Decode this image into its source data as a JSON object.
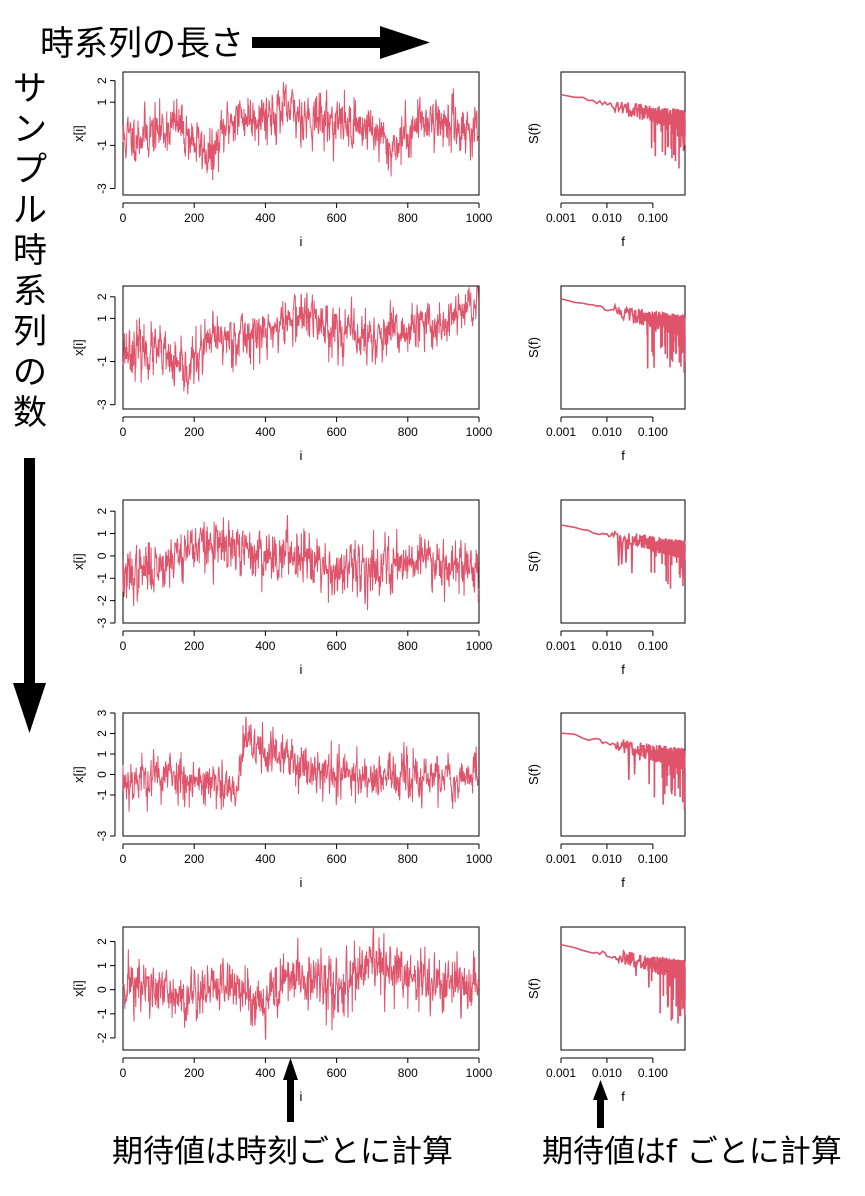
{
  "annotations": {
    "top": "時系列の長さ",
    "left": "サンプル時系列の数",
    "bottom_left": "期待値は時刻ごとに計算",
    "bottom_right": "期待値はf ごとに計算"
  },
  "colors": {
    "series": "#df536b",
    "axis": "#000000",
    "arrow": "#000000"
  },
  "chart_data": [
    {
      "type": "line",
      "panel": "time-series-1",
      "xlabel": "i",
      "ylabel": "x[i]",
      "xlim": [
        0,
        1000
      ],
      "ylim": [
        -3.3,
        2.4
      ],
      "xticks": [
        0,
        200,
        400,
        600,
        800,
        1000
      ],
      "yticks": [
        -3,
        -1,
        1,
        2
      ],
      "series": [
        {
          "n": 1000,
          "seed": 11,
          "level": [
            [
              0,
              -0.7
            ],
            [
              100,
              -0.3
            ],
            [
              150,
              0.0
            ],
            [
              200,
              -0.8
            ],
            [
              250,
              -1.6
            ],
            [
              300,
              0.2
            ],
            [
              450,
              0.6
            ],
            [
              560,
              0.2
            ],
            [
              700,
              -0.2
            ],
            [
              750,
              -1.2
            ],
            [
              850,
              0.3
            ],
            [
              1000,
              -0.4
            ]
          ]
        }
      ]
    },
    {
      "type": "line",
      "panel": "time-series-2",
      "xlabel": "i",
      "ylabel": "x[i]",
      "xlim": [
        0,
        1000
      ],
      "ylim": [
        -3.2,
        2.5
      ],
      "xticks": [
        0,
        200,
        400,
        600,
        800,
        1000
      ],
      "yticks": [
        -3,
        -1,
        1,
        2
      ],
      "series": [
        {
          "n": 1000,
          "seed": 23,
          "level": [
            [
              0,
              -0.4
            ],
            [
              100,
              -0.6
            ],
            [
              170,
              -1.6
            ],
            [
              250,
              0.0
            ],
            [
              400,
              0.3
            ],
            [
              500,
              1.2
            ],
            [
              600,
              0.5
            ],
            [
              700,
              0.0
            ],
            [
              800,
              0.4
            ],
            [
              900,
              0.8
            ],
            [
              1000,
              1.7
            ]
          ]
        }
      ]
    },
    {
      "type": "line",
      "panel": "time-series-3",
      "xlabel": "i",
      "ylabel": "x[i]",
      "xlim": [
        0,
        1000
      ],
      "ylim": [
        -3.0,
        2.5
      ],
      "xticks": [
        0,
        200,
        400,
        600,
        800,
        1000
      ],
      "yticks": [
        -3,
        -2,
        -1,
        0,
        1,
        2
      ],
      "series": [
        {
          "n": 1000,
          "seed": 37,
          "level": [
            [
              0,
              -1.0
            ],
            [
              100,
              -0.4
            ],
            [
              200,
              0.5
            ],
            [
              300,
              0.3
            ],
            [
              400,
              0.0
            ],
            [
              520,
              0.2
            ],
            [
              600,
              -0.8
            ],
            [
              700,
              -0.5
            ],
            [
              850,
              0.0
            ],
            [
              1000,
              -0.7
            ]
          ]
        }
      ]
    },
    {
      "type": "line",
      "panel": "time-series-4",
      "xlabel": "i",
      "ylabel": "x[i]",
      "xlim": [
        0,
        1000
      ],
      "ylim": [
        -3.0,
        3.0
      ],
      "xticks": [
        0,
        200,
        400,
        600,
        800,
        1000
      ],
      "yticks": [
        -3,
        -1,
        0,
        1,
        2,
        3
      ],
      "series": [
        {
          "n": 1000,
          "seed": 53,
          "level": [
            [
              0,
              -0.3
            ],
            [
              150,
              0.0
            ],
            [
              250,
              -0.5
            ],
            [
              320,
              -1.0
            ],
            [
              340,
              1.6
            ],
            [
              450,
              0.8
            ],
            [
              600,
              0.0
            ],
            [
              800,
              -0.2
            ],
            [
              1000,
              -0.1
            ]
          ]
        }
      ]
    },
    {
      "type": "line",
      "panel": "time-series-5",
      "xlabel": "i",
      "ylabel": "x[i]",
      "xlim": [
        0,
        1000
      ],
      "ylim": [
        -2.5,
        2.6
      ],
      "xticks": [
        0,
        200,
        400,
        600,
        800,
        1000
      ],
      "yticks": [
        -2,
        -1,
        0,
        1,
        2
      ],
      "series": [
        {
          "n": 1000,
          "seed": 71,
          "level": [
            [
              0,
              0.4
            ],
            [
              150,
              -0.4
            ],
            [
              300,
              0.3
            ],
            [
              380,
              -0.5
            ],
            [
              480,
              0.6
            ],
            [
              600,
              0.0
            ],
            [
              700,
              1.0
            ],
            [
              850,
              0.3
            ],
            [
              1000,
              0.0
            ]
          ]
        }
      ]
    },
    {
      "type": "line",
      "panel": "spectrum-1",
      "xlabel": "f",
      "ylabel": "S(f)",
      "xscale": "log",
      "xlim": [
        0.001,
        0.5
      ],
      "xticks": [
        0.001,
        0.01,
        0.1
      ],
      "xticklabels": [
        "0.001",
        "0.010",
        "0.100"
      ],
      "series": [
        {
          "seed": 101,
          "start": 0.82,
          "slope": 0.22,
          "noise": 0.09,
          "drops": 0.13
        }
      ]
    },
    {
      "type": "line",
      "panel": "spectrum-2",
      "xlabel": "f",
      "ylabel": "S(f)",
      "xscale": "log",
      "xlim": [
        0.001,
        0.5
      ],
      "xticks": [
        0.001,
        0.01,
        0.1
      ],
      "xticklabels": [
        "0.001",
        "0.010",
        "0.100"
      ],
      "series": [
        {
          "seed": 131,
          "start": 0.9,
          "slope": 0.23,
          "noise": 0.09,
          "drops": 0.15
        }
      ]
    },
    {
      "type": "line",
      "panel": "spectrum-3",
      "xlabel": "f",
      "ylabel": "S(f)",
      "xscale": "log",
      "xlim": [
        0.001,
        0.5
      ],
      "xticks": [
        0.001,
        0.01,
        0.1
      ],
      "xticklabels": [
        "0.001",
        "0.010",
        "0.100"
      ],
      "series": [
        {
          "seed": 157,
          "start": 0.8,
          "slope": 0.21,
          "noise": 0.08,
          "drops": 0.12
        }
      ]
    },
    {
      "type": "line",
      "panel": "spectrum-4",
      "xlabel": "f",
      "ylabel": "S(f)",
      "xscale": "log",
      "xlim": [
        0.001,
        0.5
      ],
      "xticks": [
        0.001,
        0.01,
        0.1
      ],
      "xticklabels": [
        "0.001",
        "0.010",
        "0.100"
      ],
      "series": [
        {
          "seed": 173,
          "start": 0.84,
          "slope": 0.22,
          "noise": 0.09,
          "drops": 0.14
        }
      ]
    },
    {
      "type": "line",
      "panel": "spectrum-5",
      "xlabel": "f",
      "ylabel": "S(f)",
      "xscale": "log",
      "xlim": [
        0.001,
        0.5
      ],
      "xticks": [
        0.001,
        0.01,
        0.1
      ],
      "xticklabels": [
        "0.001",
        "0.010",
        "0.100"
      ],
      "series": [
        {
          "seed": 199,
          "start": 0.86,
          "slope": 0.22,
          "noise": 0.09,
          "drops": 0.15
        }
      ]
    }
  ]
}
